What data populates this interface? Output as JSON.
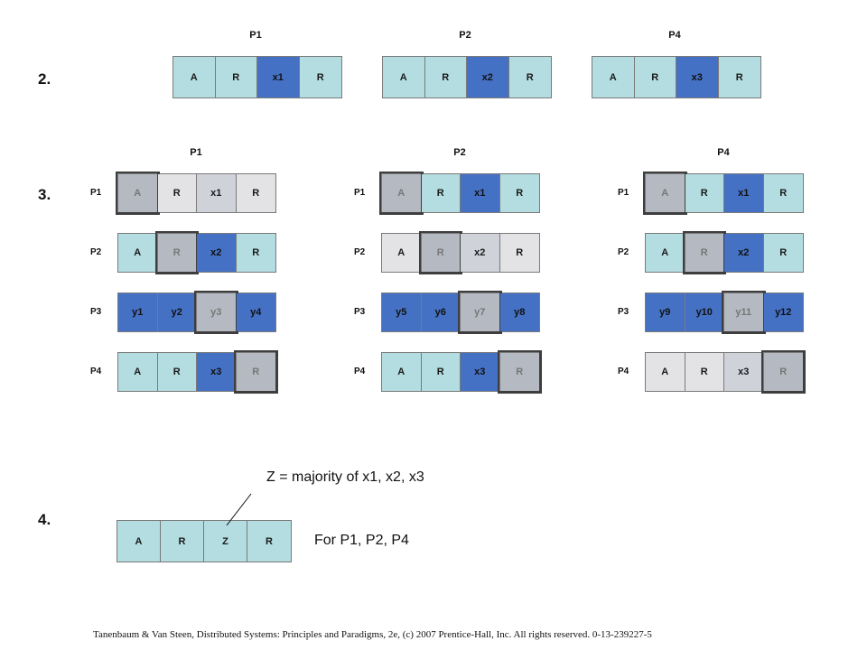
{
  "steps": {
    "s2": "2.",
    "s3": "3.",
    "s4": "4."
  },
  "step2": [
    {
      "proc": "P1",
      "cells": [
        {
          "t": "A",
          "c": "light"
        },
        {
          "t": "R",
          "c": "light"
        },
        {
          "t": "x1",
          "c": "dark"
        },
        {
          "t": "R",
          "c": "light"
        }
      ]
    },
    {
      "proc": "P2",
      "cells": [
        {
          "t": "A",
          "c": "light"
        },
        {
          "t": "R",
          "c": "light"
        },
        {
          "t": "x2",
          "c": "dark"
        },
        {
          "t": "R",
          "c": "light"
        }
      ]
    },
    {
      "proc": "P4",
      "cells": [
        {
          "t": "A",
          "c": "light"
        },
        {
          "t": "R",
          "c": "light"
        },
        {
          "t": "x3",
          "c": "dark"
        },
        {
          "t": "R",
          "c": "light"
        }
      ]
    }
  ],
  "step3": [
    {
      "proc": "P1",
      "rows": [
        {
          "label": "P1",
          "cells": [
            {
              "t": "A",
              "c": "shaded"
            },
            {
              "t": "R",
              "c": "grey"
            },
            {
              "t": "x1",
              "c": "dgrey"
            },
            {
              "t": "R",
              "c": "grey"
            }
          ]
        },
        {
          "label": "P2",
          "cells": [
            {
              "t": "A",
              "c": "light"
            },
            {
              "t": "R",
              "c": "shaded"
            },
            {
              "t": "x2",
              "c": "dark"
            },
            {
              "t": "R",
              "c": "light"
            }
          ]
        },
        {
          "label": "P3",
          "cells": [
            {
              "t": "y1",
              "c": "dark"
            },
            {
              "t": "y2",
              "c": "dark"
            },
            {
              "t": "y3",
              "c": "shaded"
            },
            {
              "t": "y4",
              "c": "dark"
            }
          ]
        },
        {
          "label": "P4",
          "cells": [
            {
              "t": "A",
              "c": "light"
            },
            {
              "t": "R",
              "c": "light"
            },
            {
              "t": "x3",
              "c": "dark"
            },
            {
              "t": "R",
              "c": "shaded"
            }
          ]
        }
      ]
    },
    {
      "proc": "P2",
      "rows": [
        {
          "label": "P1",
          "cells": [
            {
              "t": "A",
              "c": "shaded"
            },
            {
              "t": "R",
              "c": "light"
            },
            {
              "t": "x1",
              "c": "dark"
            },
            {
              "t": "R",
              "c": "light"
            }
          ]
        },
        {
          "label": "P2",
          "cells": [
            {
              "t": "A",
              "c": "grey"
            },
            {
              "t": "R",
              "c": "shaded"
            },
            {
              "t": "x2",
              "c": "dgrey"
            },
            {
              "t": "R",
              "c": "grey"
            }
          ]
        },
        {
          "label": "P3",
          "cells": [
            {
              "t": "y5",
              "c": "dark"
            },
            {
              "t": "y6",
              "c": "dark"
            },
            {
              "t": "y7",
              "c": "shaded"
            },
            {
              "t": "y8",
              "c": "dark"
            }
          ]
        },
        {
          "label": "P4",
          "cells": [
            {
              "t": "A",
              "c": "light"
            },
            {
              "t": "R",
              "c": "light"
            },
            {
              "t": "x3",
              "c": "dark"
            },
            {
              "t": "R",
              "c": "shaded"
            }
          ]
        }
      ]
    },
    {
      "proc": "P4",
      "rows": [
        {
          "label": "P1",
          "cells": [
            {
              "t": "A",
              "c": "shaded"
            },
            {
              "t": "R",
              "c": "light"
            },
            {
              "t": "x1",
              "c": "dark"
            },
            {
              "t": "R",
              "c": "light"
            }
          ]
        },
        {
          "label": "P2",
          "cells": [
            {
              "t": "A",
              "c": "light"
            },
            {
              "t": "R",
              "c": "shaded"
            },
            {
              "t": "x2",
              "c": "dark"
            },
            {
              "t": "R",
              "c": "light"
            }
          ]
        },
        {
          "label": "P3",
          "cells": [
            {
              "t": "y9",
              "c": "dark"
            },
            {
              "t": "y10",
              "c": "dark"
            },
            {
              "t": "y11",
              "c": "shaded"
            },
            {
              "t": "y12",
              "c": "dark"
            }
          ]
        },
        {
          "label": "P4",
          "cells": [
            {
              "t": "A",
              "c": "grey"
            },
            {
              "t": "R",
              "c": "grey"
            },
            {
              "t": "x3",
              "c": "dgrey"
            },
            {
              "t": "R",
              "c": "shaded"
            }
          ]
        }
      ]
    }
  ],
  "step4": {
    "cells": [
      {
        "t": "A",
        "c": "light"
      },
      {
        "t": "R",
        "c": "light"
      },
      {
        "t": "Z",
        "c": "light"
      },
      {
        "t": "R",
        "c": "light"
      }
    ],
    "note": "Z = majority of x1, x2, x3",
    "for_text": "For P1, P2, P4"
  },
  "footer": "Tanenbaum & Van Steen, Distributed Systems: Principles and Paradigms, 2e, (c) 2007 Prentice-Hall, Inc. All rights reserved. 0-13-239227-5",
  "colors": {
    "light": "#b3dde0",
    "dark": "#4571c4",
    "grey": "#e3e3e6",
    "shaded": "#b4b9c2"
  }
}
